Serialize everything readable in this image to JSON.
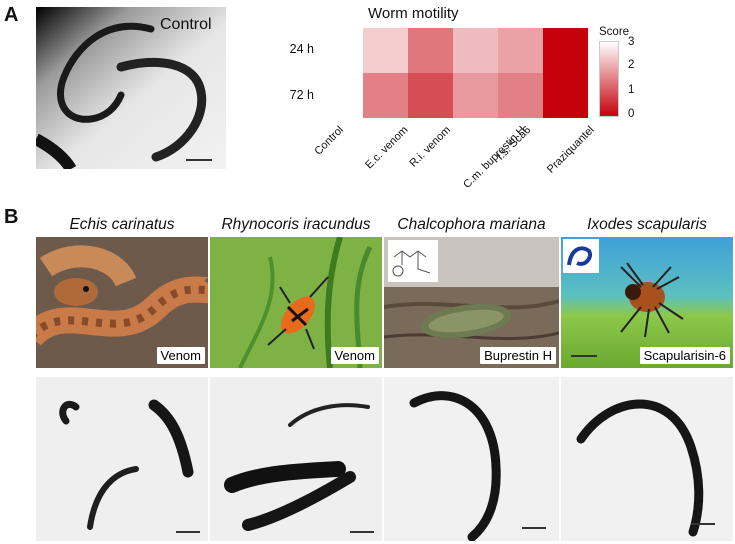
{
  "panel_a": {
    "letter": "A",
    "control_label": "Control"
  },
  "panel_b": {
    "letter": "B",
    "species": [
      {
        "name": "Echis carinatus",
        "compound": "Venom",
        "color": "#b06030"
      },
      {
        "name": "Rhynocoris iracundus",
        "compound": "Venom",
        "color": "#4a8a2a"
      },
      {
        "name": "Chalcophora mariana",
        "compound": "Buprestin H",
        "color": "#8a7a66"
      },
      {
        "name": "Ixodes scapularis",
        "compound": "Scapularisin-6",
        "color": "#7bbf3a"
      }
    ]
  },
  "chart_data": {
    "type": "heatmap",
    "title": "Worm motility",
    "rows": [
      "24 h",
      "72 h"
    ],
    "columns": [
      "Control",
      "E.c. venom",
      "R.i. venom",
      "C.m. buprestin H",
      "I.s. Sca6",
      "Praziquantel"
    ],
    "values": [
      [
        3.0,
        2.4,
        1.4,
        2.2,
        1.9,
        0.0
      ],
      [
        3.0,
        1.5,
        0.9,
        1.8,
        1.5,
        0.0
      ]
    ],
    "colorbar": {
      "label": "Score",
      "ticks": [
        3,
        2,
        1,
        0
      ],
      "range": [
        0,
        3
      ],
      "low_color": "#c5000b",
      "high_color": "#ffffff"
    }
  }
}
